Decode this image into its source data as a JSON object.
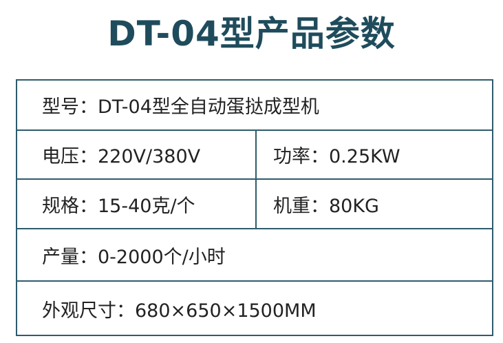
{
  "title": "DT-04型产品参数",
  "table": {
    "rows": [
      [
        "型号：DT-04型全自动蛋挞成型机"
      ],
      [
        "电压：220V/380V",
        "功率：0.25KW"
      ],
      [
        "规格：15-40克/个",
        "机重：80KG"
      ],
      [
        "产量：0-2000个/小时"
      ],
      [
        "外观尺寸：680×650×1500MM"
      ]
    ]
  }
}
